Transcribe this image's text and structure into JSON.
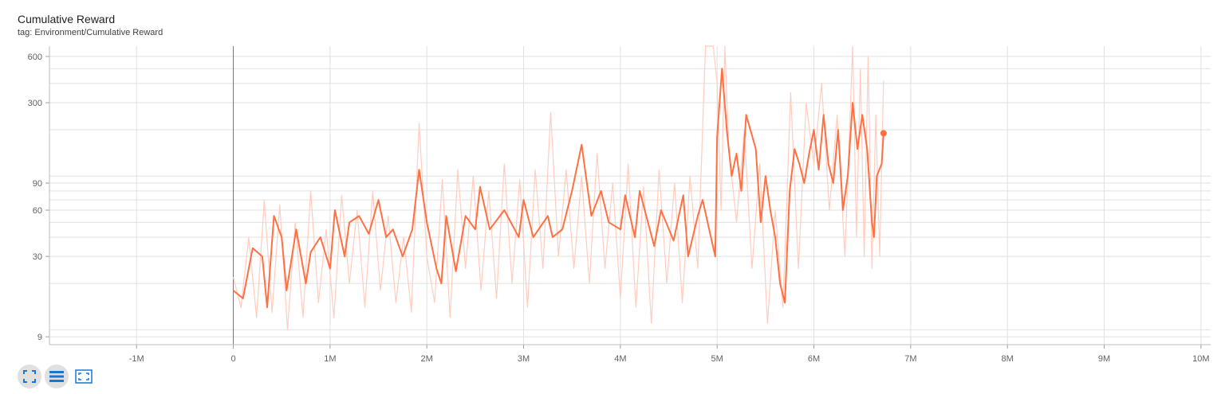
{
  "card": {
    "title": "Cumulative Reward",
    "tag": "tag: Environment/Cumulative Reward"
  },
  "toolbar": {
    "buttons": [
      {
        "icon": "fit-to-data-icon",
        "active": true
      },
      {
        "icon": "toggle-log-scale-icon",
        "active": true
      },
      {
        "icon": "expand-icon",
        "active": false
      }
    ]
  },
  "chart_data": {
    "type": "line",
    "title": "Cumulative Reward",
    "xlabel": "",
    "ylabel": "",
    "x_scale": "linear",
    "y_scale": "log",
    "xlim": [
      -1900000,
      10100000
    ],
    "ylim": [
      8,
      700
    ],
    "x_ticks": [
      -1000000,
      0,
      1000000,
      2000000,
      3000000,
      4000000,
      5000000,
      6000000,
      7000000,
      8000000,
      9000000,
      10000000
    ],
    "x_tick_labels": [
      "-1M",
      "0",
      "1M",
      "2M",
      "3M",
      "4M",
      "5M",
      "6M",
      "7M",
      "8M",
      "9M",
      "10M"
    ],
    "y_ticks": [
      9,
      30,
      60,
      90,
      300,
      600
    ],
    "y_tick_labels": [
      "9",
      "30",
      "60",
      "90",
      "300",
      "600"
    ],
    "y_minor_ticks": [
      10,
      20,
      40,
      50,
      70,
      80,
      100,
      200,
      400,
      500
    ],
    "grid": true,
    "legend": "none",
    "colors": {
      "smoothed": "#ff7043",
      "raw": "#ffcdbf",
      "grid": "#e0e0e0",
      "zero_axis": "#757575"
    },
    "series": [
      {
        "smoothing": "smoothed",
        "x": [
          0,
          100000,
          200000,
          300000,
          350000,
          420000,
          500000,
          550000,
          650000,
          750000,
          800000,
          900000,
          1000000,
          1050000,
          1150000,
          1200000,
          1300000,
          1400000,
          1500000,
          1580000,
          1650000,
          1750000,
          1850000,
          1920000,
          2000000,
          2100000,
          2150000,
          2200000,
          2300000,
          2400000,
          2500000,
          2550000,
          2650000,
          2800000,
          2950000,
          3000000,
          3100000,
          3250000,
          3300000,
          3400000,
          3500000,
          3600000,
          3700000,
          3800000,
          3880000,
          4000000,
          4050000,
          4150000,
          4200000,
          4350000,
          4420000,
          4550000,
          4650000,
          4700000,
          4800000,
          4850000,
          4980000,
          5000000,
          5050000,
          5100000,
          5150000,
          5200000,
          5250000,
          5300000,
          5400000,
          5450000,
          5500000,
          5550000,
          5600000,
          5650000,
          5700000,
          5750000,
          5800000,
          5850000,
          5900000,
          5950000,
          6000000,
          6050000,
          6100000,
          6150000,
          6200000,
          6250000,
          6300000,
          6350000,
          6400000,
          6450000,
          6500000,
          6550000,
          6600000,
          6620000,
          6650000,
          6700000,
          6720000
        ],
        "y": [
          18,
          16,
          34,
          30,
          14,
          55,
          40,
          18,
          45,
          20,
          32,
          40,
          25,
          60,
          30,
          50,
          55,
          42,
          70,
          40,
          45,
          30,
          45,
          110,
          50,
          25,
          20,
          55,
          24,
          55,
          45,
          85,
          45,
          60,
          40,
          70,
          40,
          55,
          40,
          45,
          80,
          160,
          55,
          80,
          50,
          45,
          75,
          40,
          80,
          35,
          60,
          38,
          75,
          30,
          55,
          70,
          30,
          180,
          500,
          200,
          100,
          140,
          80,
          250,
          150,
          50,
          100,
          60,
          40,
          20,
          15,
          80,
          150,
          120,
          90,
          140,
          200,
          110,
          250,
          120,
          90,
          200,
          60,
          100,
          300,
          150,
          250,
          150,
          50,
          40,
          100,
          120,
          190
        ]
      },
      {
        "smoothing": "raw",
        "x": [
          0,
          80000,
          160000,
          240000,
          320000,
          400000,
          480000,
          560000,
          640000,
          720000,
          800000,
          880000,
          960000,
          1040000,
          1120000,
          1200000,
          1280000,
          1360000,
          1440000,
          1520000,
          1600000,
          1680000,
          1760000,
          1840000,
          1920000,
          2000000,
          2080000,
          2160000,
          2240000,
          2320000,
          2400000,
          2480000,
          2560000,
          2640000,
          2720000,
          2800000,
          2880000,
          2960000,
          3040000,
          3120000,
          3200000,
          3280000,
          3360000,
          3440000,
          3520000,
          3600000,
          3680000,
          3760000,
          3840000,
          3920000,
          4000000,
          4080000,
          4160000,
          4240000,
          4320000,
          4400000,
          4480000,
          4560000,
          4640000,
          4720000,
          4800000,
          4880000,
          4960000,
          5000000,
          5040000,
          5080000,
          5120000,
          5200000,
          5280000,
          5360000,
          5440000,
          5520000,
          5600000,
          5680000,
          5760000,
          5840000,
          5920000,
          6000000,
          6080000,
          6160000,
          6240000,
          6320000,
          6400000,
          6440000,
          6480000,
          6520000,
          6560000,
          6600000,
          6640000,
          6680000,
          6720000
        ],
        "y": [
          22,
          14,
          40,
          12,
          70,
          13,
          65,
          10,
          50,
          12,
          80,
          15,
          45,
          12,
          75,
          20,
          60,
          14,
          80,
          18,
          55,
          15,
          40,
          13,
          220,
          30,
          15,
          95,
          12,
          110,
          25,
          100,
          18,
          80,
          16,
          120,
          20,
          95,
          14,
          110,
          25,
          260,
          30,
          110,
          25,
          100,
          20,
          140,
          25,
          90,
          16,
          120,
          14,
          85,
          11,
          110,
          20,
          90,
          15,
          100,
          25,
          700,
          700,
          400,
          60,
          700,
          150,
          50,
          200,
          25,
          120,
          11,
          60,
          14,
          350,
          25,
          300,
          120,
          400,
          60,
          250,
          30,
          700,
          40,
          500,
          30,
          600,
          25,
          250,
          30,
          420
        ]
      }
    ]
  }
}
